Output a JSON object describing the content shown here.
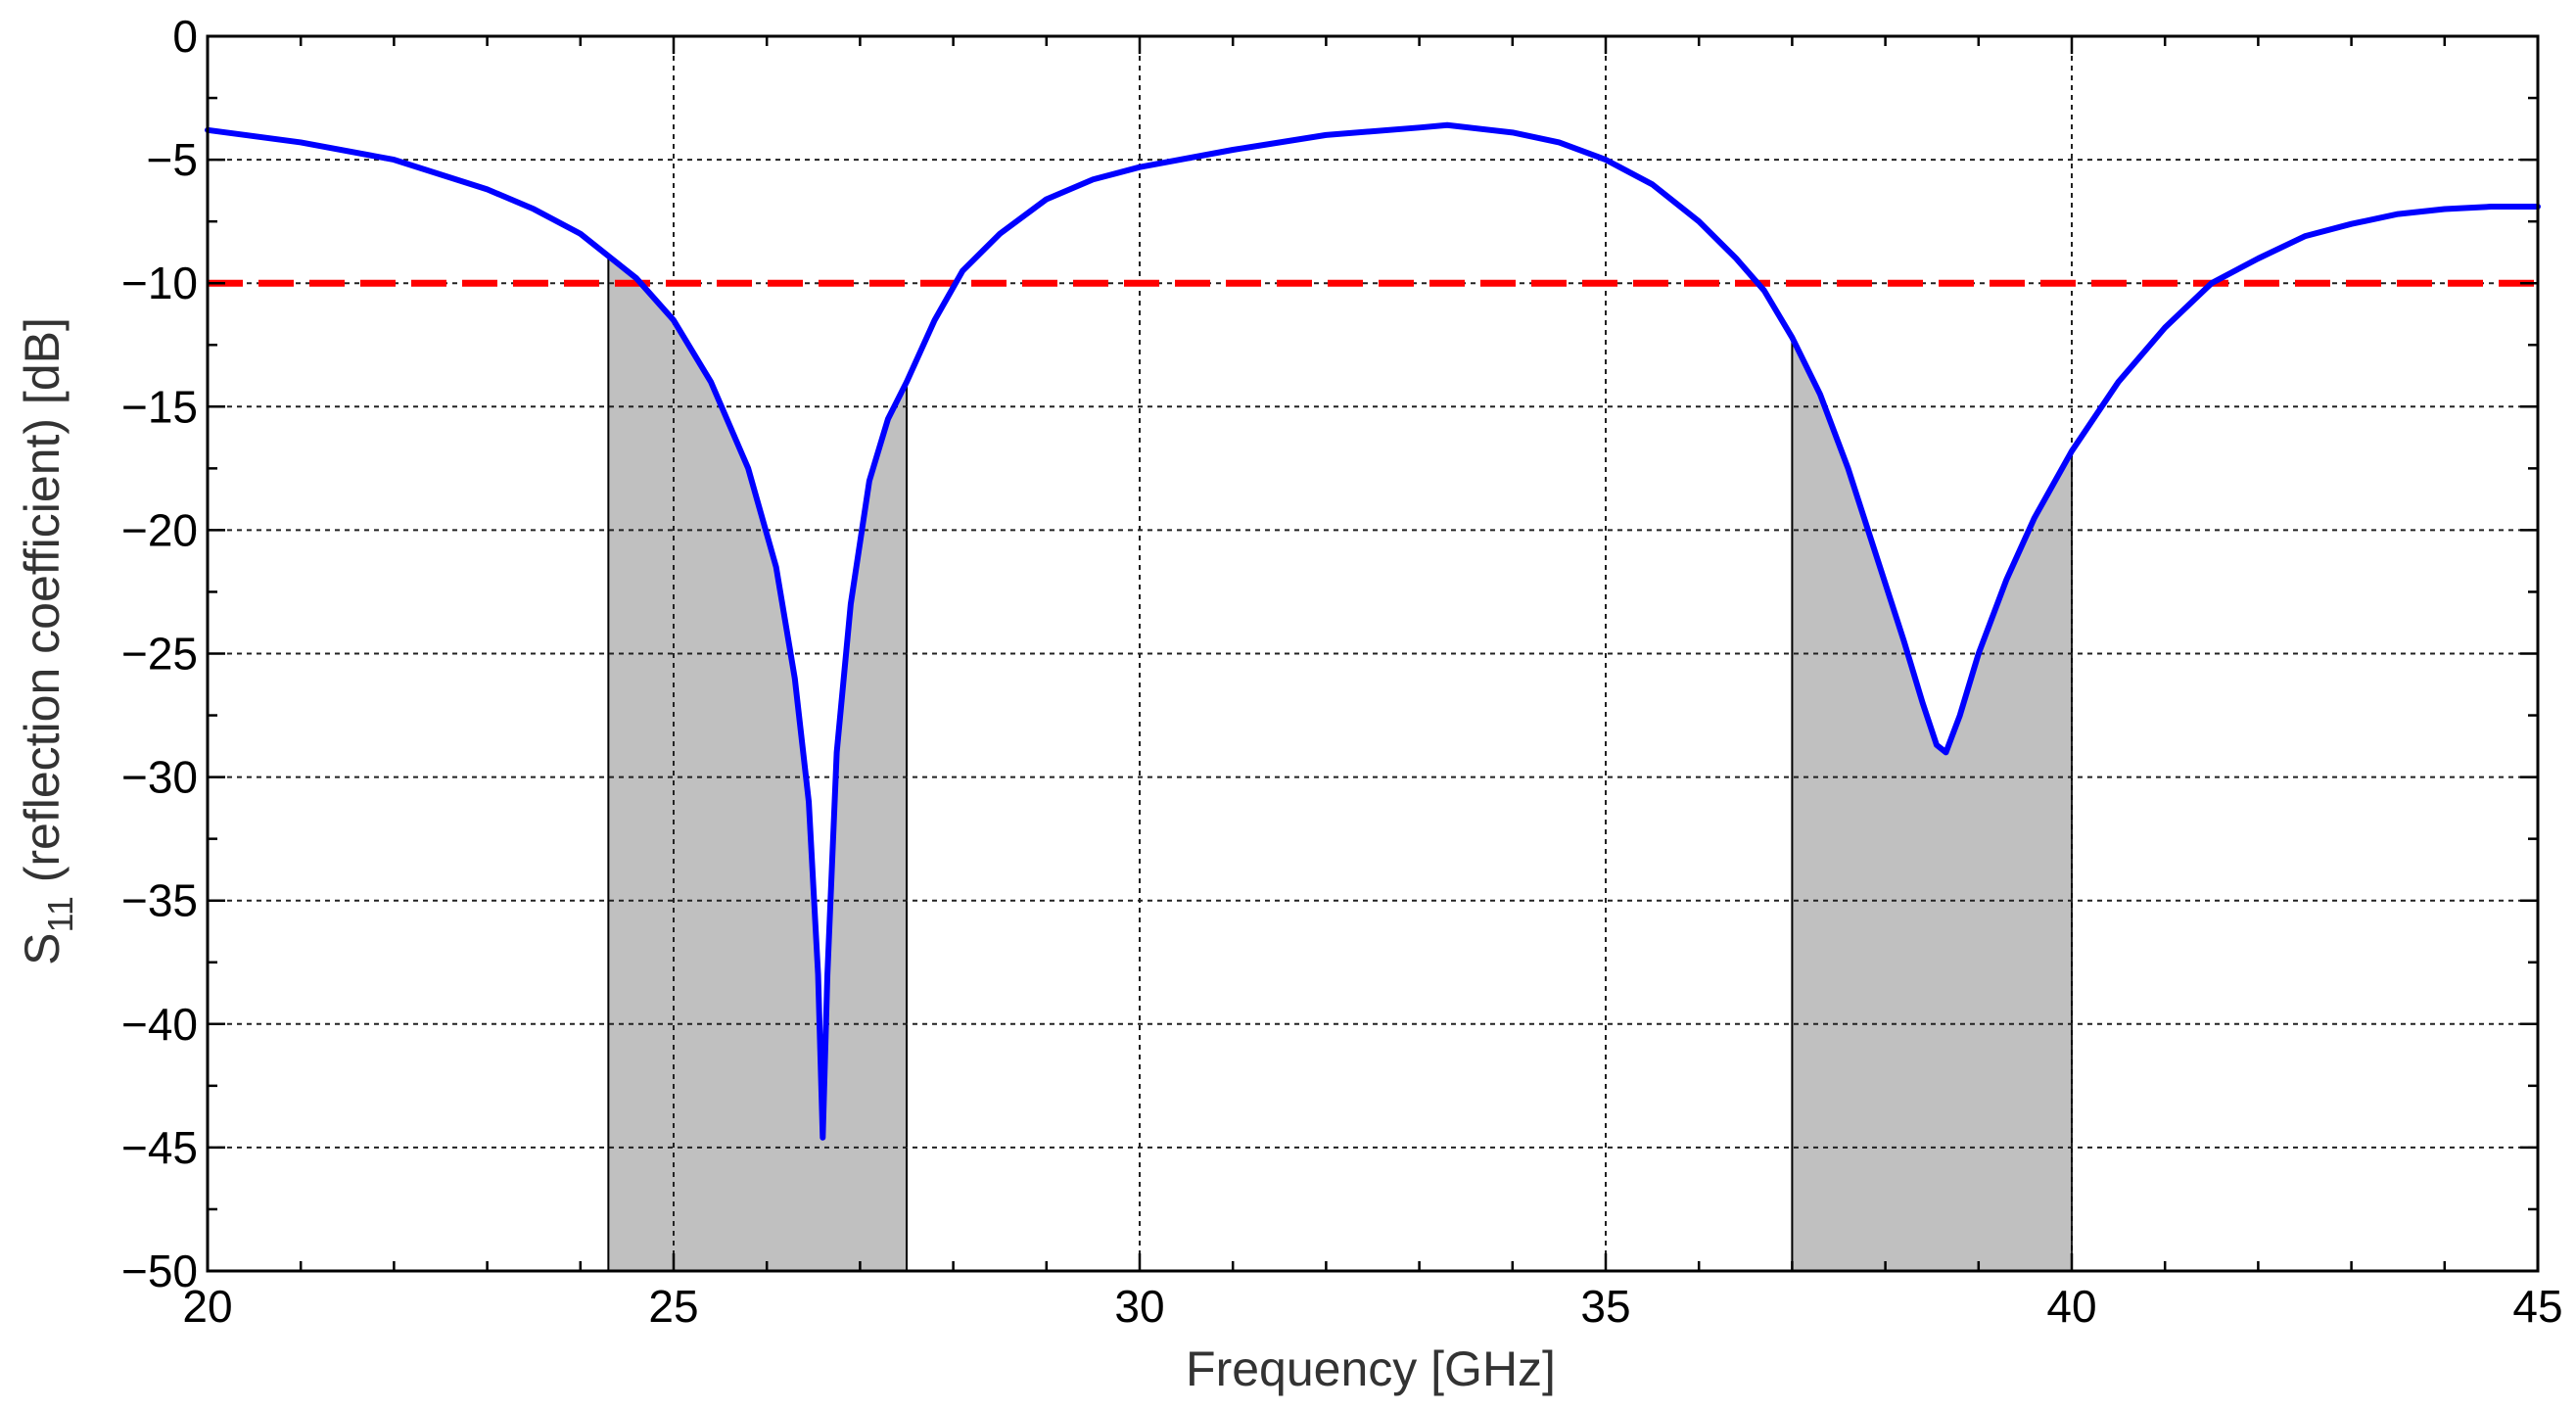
{
  "chart_data": {
    "type": "line",
    "title": "",
    "xlabel": "Frequency [GHz]",
    "ylabel_main": "S",
    "ylabel_sub": "11",
    "ylabel_rest": " (reflection coefficient) [dB]",
    "xlim": [
      20,
      45
    ],
    "ylim": [
      -50,
      0
    ],
    "xticks": [
      20,
      25,
      30,
      35,
      40,
      45
    ],
    "xtick_labels": [
      "20",
      "25",
      "30",
      "35",
      "40",
      "45"
    ],
    "yticks": [
      0,
      -5,
      -10,
      -15,
      -20,
      -25,
      -30,
      -35,
      -40,
      -45,
      -50
    ],
    "ytick_labels": [
      "0",
      "−5",
      "−10",
      "−15",
      "−20",
      "−25",
      "−30",
      "−35",
      "−40",
      "−45",
      "−50"
    ],
    "grid": true,
    "series": [
      {
        "color": "#0000ff",
        "x": [
          20,
          21,
          22,
          23,
          23.5,
          24,
          24.3,
          24.6,
          25,
          25.4,
          25.8,
          26.1,
          26.3,
          26.45,
          26.55,
          26.6,
          26.65,
          26.75,
          26.9,
          27.1,
          27.3,
          27.5,
          27.8,
          28.1,
          28.5,
          29,
          29.5,
          30,
          31,
          32,
          33,
          33.3,
          34,
          34.5,
          35,
          35.5,
          36,
          36.4,
          36.7,
          37,
          37.3,
          37.6,
          37.9,
          38.2,
          38.4,
          38.55,
          38.65,
          38.8,
          39,
          39.3,
          39.6,
          40,
          40.5,
          41,
          41.5,
          42,
          42.5,
          43,
          43.5,
          44,
          44.5,
          45
        ],
        "y": [
          -3.8,
          -4.3,
          -5.0,
          -6.2,
          -7.0,
          -8.0,
          -8.9,
          -9.8,
          -11.5,
          -14.0,
          -17.5,
          -21.5,
          -26.0,
          -31.0,
          -38.0,
          -44.6,
          -38.0,
          -29.0,
          -23.0,
          -18.0,
          -15.5,
          -14.0,
          -11.5,
          -9.5,
          -8.0,
          -6.6,
          -5.8,
          -5.3,
          -4.6,
          -4.0,
          -3.7,
          -3.6,
          -3.9,
          -4.3,
          -5.0,
          -6.0,
          -7.5,
          -9.0,
          -10.3,
          -12.2,
          -14.5,
          -17.5,
          -21.0,
          -24.5,
          -27.0,
          -28.7,
          -29.0,
          -27.5,
          -25.0,
          -22.0,
          -19.5,
          -16.8,
          -14.0,
          -11.8,
          -10.0,
          -9.0,
          -8.1,
          -7.6,
          -7.2,
          -7.0,
          -6.9,
          -6.9
        ]
      }
    ],
    "threshold": {
      "y": -10,
      "color": "#ff0000",
      "style": "dashed"
    },
    "shaded_bands": [
      {
        "x_start": 24.3,
        "x_end": 27.5,
        "color": "#c0c0c0"
      },
      {
        "x_start": 37.0,
        "x_end": 40.0,
        "color": "#c0c0c0"
      }
    ]
  }
}
